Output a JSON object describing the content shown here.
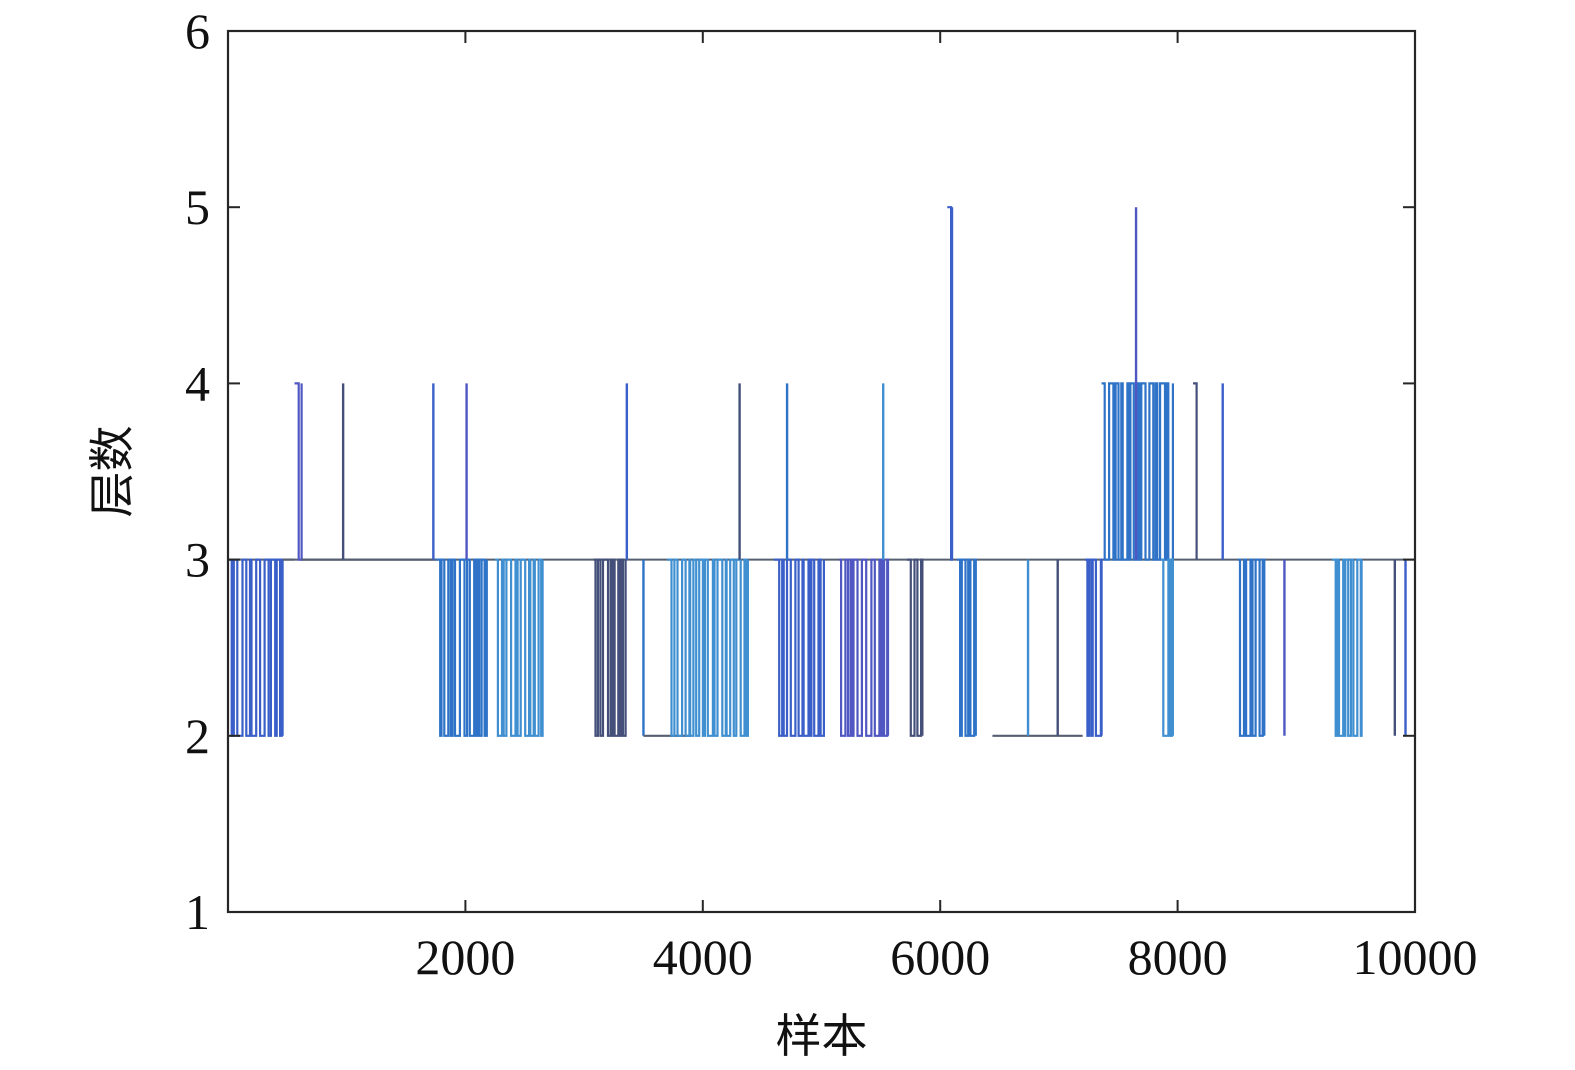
{
  "chart_data": {
    "type": "line",
    "title": "",
    "xlabel": "样本",
    "ylabel": "层数",
    "xlim": [
      0,
      10000
    ],
    "ylim": [
      1,
      6
    ],
    "x_ticks": [
      2000,
      4000,
      6000,
      8000,
      10000
    ],
    "y_ticks": [
      1,
      2,
      3,
      4,
      5,
      6
    ],
    "grid": false,
    "legend": "none",
    "series_color": "#3a5fc8",
    "baseline_value": 3,
    "series": [
      {
        "segments": [
          {
            "x": [
              0,
              460
            ],
            "values": [
              2,
              3
            ]
          },
          {
            "x": [
              460,
              560
            ],
            "values": [
              3,
              3
            ]
          },
          {
            "x": [
              560,
              620
            ],
            "values": [
              3,
              4
            ]
          },
          {
            "x": [
              620,
              1750
            ],
            "values": [
              3,
              3
            ]
          },
          {
            "x": [
              970,
              970
            ],
            "values": [
              3,
              4
            ]
          },
          {
            "x": [
              1730,
              1730
            ],
            "values": [
              3,
              4
            ]
          },
          {
            "x": [
              1750,
              2180
            ],
            "values": [
              2,
              3
            ]
          },
          {
            "x": [
              2010,
              2010
            ],
            "values": [
              3,
              4
            ]
          },
          {
            "x": [
              2250,
              2650
            ],
            "values": [
              2,
              3
            ]
          },
          {
            "x": [
              3080,
              3350
            ],
            "values": [
              2,
              3
            ]
          },
          {
            "x": [
              3360,
              3360
            ],
            "values": [
              3,
              4
            ]
          },
          {
            "x": [
              3500,
              3500
            ],
            "values": [
              2,
              3
            ]
          },
          {
            "x": [
              3500,
              3900
            ],
            "values": [
              2,
              2
            ]
          },
          {
            "x": [
              3700,
              4380
            ],
            "values": [
              2,
              3
            ]
          },
          {
            "x": [
              4310,
              4310
            ],
            "values": [
              3,
              4
            ]
          },
          {
            "x": [
              4600,
              5020
            ],
            "values": [
              2,
              3
            ]
          },
          {
            "x": [
              4710,
              4710
            ],
            "values": [
              3,
              4
            ]
          },
          {
            "x": [
              5150,
              5560
            ],
            "values": [
              2,
              3
            ]
          },
          {
            "x": [
              5520,
              5520
            ],
            "values": [
              3,
              4
            ]
          },
          {
            "x": [
              5720,
              5850
            ],
            "values": [
              2,
              3
            ]
          },
          {
            "x": [
              6060,
              6100
            ],
            "values": [
              3,
              5
            ]
          },
          {
            "x": [
              6140,
              6300
            ],
            "values": [
              2,
              3
            ]
          },
          {
            "x": [
              6440,
              7200
            ],
            "values": [
              2,
              2
            ]
          },
          {
            "x": [
              6740,
              6740
            ],
            "values": [
              2,
              3
            ]
          },
          {
            "x": [
              6990,
              6990
            ],
            "values": [
              2,
              3
            ]
          },
          {
            "x": [
              7220,
              7360
            ],
            "values": [
              2,
              3
            ]
          },
          {
            "x": [
              7360,
              7960
            ],
            "values": [
              3,
              4
            ]
          },
          {
            "x": [
              7650,
              7650
            ],
            "values": [
              3,
              5
            ]
          },
          {
            "x": [
              7860,
              7960
            ],
            "values": [
              2,
              3
            ]
          },
          {
            "x": [
              8130,
              8160
            ],
            "values": [
              3,
              4
            ]
          },
          {
            "x": [
              8380,
              8380
            ],
            "values": [
              3,
              4
            ]
          },
          {
            "x": [
              8510,
              8730
            ],
            "values": [
              2,
              3
            ]
          },
          {
            "x": [
              8900,
              8900
            ],
            "values": [
              2,
              3
            ]
          },
          {
            "x": [
              9300,
              9550
            ],
            "values": [
              2,
              3
            ]
          },
          {
            "x": [
              9830,
              9830
            ],
            "values": [
              2,
              3
            ]
          },
          {
            "x": [
              9920,
              9920
            ],
            "values": [
              2,
              3
            ]
          }
        ]
      }
    ]
  }
}
